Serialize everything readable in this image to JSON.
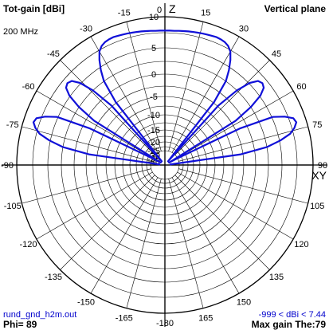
{
  "header": {
    "title": "Tot-gain [dBi]",
    "plane": "Vertical plane",
    "frequency": "200 MHz",
    "axis_z": "Z",
    "axis_xy": "XY"
  },
  "footer": {
    "filename": "rund_gnd_h2m.out",
    "gain_range": "-999 < dBi < 7.44",
    "phi": "Phi= 89",
    "max_gain": "Max gain The:79"
  },
  "colors": {
    "pattern": "#1010d8",
    "grid": "#000000",
    "background": "#ffffff",
    "footer_text": "#0000cc"
  },
  "chart_data": {
    "type": "polar",
    "title": "Tot-gain [dBi]",
    "subtitle": "Vertical plane",
    "angle_labels": [
      "0",
      "15",
      "30",
      "45",
      "60",
      "75",
      "90",
      "105",
      "120",
      "135",
      "150",
      "165",
      "-180",
      "-165",
      "-150",
      "-135",
      "-120",
      "-105",
      "-90",
      "-75",
      "-60",
      "-45",
      "-30",
      "-15"
    ],
    "radial_tick_labels": [
      "10",
      "5",
      "0",
      "-5",
      "-10",
      "-15",
      "-20",
      "-25",
      "-30",
      "-35",
      "-40"
    ],
    "radial_range_dbi": [
      -40,
      10
    ],
    "angle_step_deg": 15,
    "grid": true,
    "series": [
      {
        "angles_deg": [
          -84,
          -82,
          -80,
          -78,
          -76,
          -74,
          -72,
          -70,
          -68,
          -66,
          -64,
          -62,
          -60,
          -58,
          -56,
          -54,
          -52,
          -50,
          -48,
          -46,
          -44,
          -42,
          -40,
          -38,
          -36,
          -34,
          -32,
          -30,
          -28,
          -26,
          -24,
          -22,
          -20,
          -18,
          -16,
          -14,
          -12,
          -10,
          -8,
          -6,
          -4,
          -2,
          0,
          2,
          4,
          6,
          8,
          10,
          12,
          14,
          16,
          18,
          20,
          22,
          24,
          26,
          28,
          30,
          32,
          34,
          36,
          38,
          40,
          42,
          44,
          46,
          48,
          50,
          52,
          54,
          56,
          58,
          60,
          62,
          64,
          66,
          68,
          70,
          72,
          74,
          76,
          78,
          80,
          82,
          84
        ],
        "gain_dbi": [
          -40,
          -10,
          -2,
          2,
          5,
          6.5,
          7.4,
          7,
          5,
          2,
          -8,
          -33,
          -40,
          -8,
          -2,
          2,
          4,
          4.5,
          4,
          2,
          -2,
          -9,
          -40,
          -9,
          -2,
          1,
          3.5,
          5.5,
          6.5,
          7,
          7.2,
          7.3,
          7.2,
          7.1,
          7,
          6.9,
          6.8,
          6.7,
          6.6,
          6.5,
          6.4,
          6.4,
          6.4,
          6.4,
          6.4,
          6.5,
          6.6,
          6.7,
          6.8,
          6.9,
          7,
          7.1,
          7.2,
          7.3,
          7.2,
          7,
          6.5,
          5.5,
          3.5,
          1,
          -2,
          -9,
          -40,
          -9,
          -2,
          2,
          4,
          4.5,
          4,
          2,
          -2,
          -8,
          -40,
          -33,
          -8,
          2,
          5,
          7,
          7.4,
          6.5,
          5,
          2,
          -2,
          -10,
          -40
        ]
      }
    ]
  }
}
